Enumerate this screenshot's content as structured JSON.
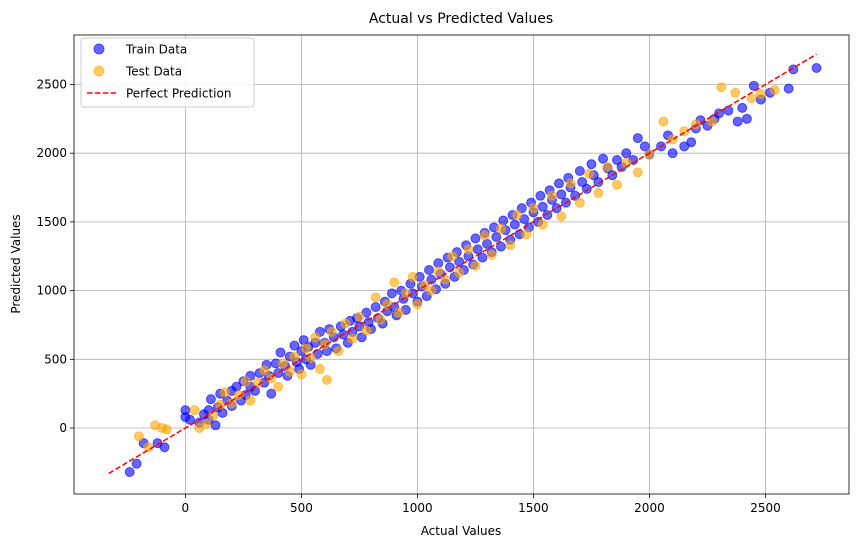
{
  "chart_data": {
    "type": "scatter",
    "title": "Actual vs Predicted Values",
    "xlabel": "Actual Values",
    "ylabel": "Predicted Values",
    "xlim": [
      -480,
      2860
    ],
    "ylim": [
      -480,
      2860
    ],
    "x_ticks": [
      0,
      500,
      1000,
      1500,
      2000,
      2500
    ],
    "y_ticks": [
      0,
      500,
      1000,
      1500,
      2000,
      2500
    ],
    "grid": true,
    "legend_position": "top-left",
    "colors": {
      "train": "#0000ff",
      "test": "#ffa500",
      "perfect": "#ff0000",
      "grid": "#b0b0b0"
    },
    "series": [
      {
        "name": "Train Data",
        "color": "#0000ff",
        "points": [
          [
            -240,
            -320
          ],
          [
            -210,
            -260
          ],
          [
            -180,
            -110
          ],
          [
            -120,
            -110
          ],
          [
            -90,
            -140
          ],
          [
            0,
            130
          ],
          [
            0,
            80
          ],
          [
            20,
            60
          ],
          [
            60,
            40
          ],
          [
            80,
            100
          ],
          [
            100,
            130
          ],
          [
            100,
            60
          ],
          [
            110,
            210
          ],
          [
            130,
            20
          ],
          [
            140,
            150
          ],
          [
            150,
            250
          ],
          [
            160,
            110
          ],
          [
            180,
            200
          ],
          [
            200,
            270
          ],
          [
            200,
            160
          ],
          [
            220,
            300
          ],
          [
            240,
            200
          ],
          [
            250,
            340
          ],
          [
            260,
            240
          ],
          [
            280,
            300
          ],
          [
            280,
            380
          ],
          [
            300,
            270
          ],
          [
            320,
            400
          ],
          [
            340,
            330
          ],
          [
            350,
            460
          ],
          [
            360,
            380
          ],
          [
            370,
            250
          ],
          [
            390,
            470
          ],
          [
            400,
            400
          ],
          [
            410,
            550
          ],
          [
            430,
            450
          ],
          [
            440,
            380
          ],
          [
            450,
            520
          ],
          [
            470,
            600
          ],
          [
            480,
            480
          ],
          [
            490,
            430
          ],
          [
            500,
            560
          ],
          [
            510,
            640
          ],
          [
            520,
            500
          ],
          [
            530,
            590
          ],
          [
            540,
            460
          ],
          [
            560,
            620
          ],
          [
            570,
            540
          ],
          [
            580,
            700
          ],
          [
            600,
            620
          ],
          [
            610,
            560
          ],
          [
            620,
            720
          ],
          [
            640,
            660
          ],
          [
            650,
            580
          ],
          [
            670,
            740
          ],
          [
            680,
            680
          ],
          [
            700,
            620
          ],
          [
            710,
            780
          ],
          [
            720,
            700
          ],
          [
            740,
            800
          ],
          [
            750,
            740
          ],
          [
            760,
            660
          ],
          [
            780,
            840
          ],
          [
            790,
            770
          ],
          [
            800,
            720
          ],
          [
            820,
            880
          ],
          [
            830,
            800
          ],
          [
            850,
            760
          ],
          [
            860,
            920
          ],
          [
            870,
            850
          ],
          [
            890,
            980
          ],
          [
            900,
            880
          ],
          [
            910,
            820
          ],
          [
            930,
            1000
          ],
          [
            940,
            940
          ],
          [
            950,
            860
          ],
          [
            970,
            1050
          ],
          [
            980,
            980
          ],
          [
            1000,
            920
          ],
          [
            1010,
            1100
          ],
          [
            1020,
            1030
          ],
          [
            1040,
            960
          ],
          [
            1050,
            1150
          ],
          [
            1060,
            1080
          ],
          [
            1080,
            1010
          ],
          [
            1090,
            1200
          ],
          [
            1100,
            1120
          ],
          [
            1120,
            1050
          ],
          [
            1130,
            1240
          ],
          [
            1140,
            1170
          ],
          [
            1160,
            1100
          ],
          [
            1170,
            1280
          ],
          [
            1180,
            1210
          ],
          [
            1200,
            1150
          ],
          [
            1210,
            1330
          ],
          [
            1220,
            1250
          ],
          [
            1240,
            1190
          ],
          [
            1250,
            1380
          ],
          [
            1260,
            1300
          ],
          [
            1280,
            1240
          ],
          [
            1290,
            1420
          ],
          [
            1300,
            1340
          ],
          [
            1320,
            1280
          ],
          [
            1330,
            1460
          ],
          [
            1340,
            1390
          ],
          [
            1360,
            1320
          ],
          [
            1370,
            1510
          ],
          [
            1380,
            1440
          ],
          [
            1400,
            1370
          ],
          [
            1410,
            1550
          ],
          [
            1420,
            1480
          ],
          [
            1440,
            1410
          ],
          [
            1450,
            1600
          ],
          [
            1460,
            1520
          ],
          [
            1480,
            1460
          ],
          [
            1490,
            1640
          ],
          [
            1500,
            1570
          ],
          [
            1520,
            1500
          ],
          [
            1530,
            1690
          ],
          [
            1540,
            1610
          ],
          [
            1560,
            1550
          ],
          [
            1570,
            1730
          ],
          [
            1580,
            1660
          ],
          [
            1600,
            1600
          ],
          [
            1610,
            1780
          ],
          [
            1620,
            1700
          ],
          [
            1640,
            1640
          ],
          [
            1650,
            1820
          ],
          [
            1660,
            1750
          ],
          [
            1680,
            1690
          ],
          [
            1700,
            1870
          ],
          [
            1710,
            1790
          ],
          [
            1730,
            1740
          ],
          [
            1750,
            1920
          ],
          [
            1760,
            1840
          ],
          [
            1780,
            1790
          ],
          [
            1800,
            1960
          ],
          [
            1820,
            1890
          ],
          [
            1840,
            1840
          ],
          [
            1860,
            1950
          ],
          [
            1880,
            1900
          ],
          [
            1900,
            2000
          ],
          [
            1930,
            1950
          ],
          [
            1950,
            2110
          ],
          [
            1980,
            2050
          ],
          [
            2000,
            1990
          ],
          [
            2050,
            2050
          ],
          [
            2080,
            2130
          ],
          [
            2100,
            2000
          ],
          [
            2150,
            2050
          ],
          [
            2180,
            2080
          ],
          [
            2200,
            2180
          ],
          [
            2220,
            2240
          ],
          [
            2250,
            2200
          ],
          [
            2280,
            2250
          ],
          [
            2300,
            2290
          ],
          [
            2340,
            2310
          ],
          [
            2380,
            2230
          ],
          [
            2400,
            2330
          ],
          [
            2420,
            2250
          ],
          [
            2450,
            2490
          ],
          [
            2480,
            2390
          ],
          [
            2520,
            2440
          ],
          [
            2600,
            2470
          ],
          [
            2620,
            2610
          ],
          [
            2720,
            2620
          ]
        ]
      },
      {
        "name": "Test Data",
        "color": "#ffa500",
        "points": [
          [
            -200,
            -60
          ],
          [
            -160,
            -140
          ],
          [
            -130,
            20
          ],
          [
            -100,
            0
          ],
          [
            -80,
            -10
          ],
          [
            40,
            130
          ],
          [
            60,
            0
          ],
          [
            90,
            30
          ],
          [
            120,
            90
          ],
          [
            150,
            170
          ],
          [
            170,
            260
          ],
          [
            200,
            180
          ],
          [
            230,
            240
          ],
          [
            260,
            340
          ],
          [
            280,
            200
          ],
          [
            310,
            330
          ],
          [
            340,
            420
          ],
          [
            370,
            360
          ],
          [
            400,
            300
          ],
          [
            420,
            470
          ],
          [
            450,
            410
          ],
          [
            470,
            520
          ],
          [
            500,
            390
          ],
          [
            520,
            580
          ],
          [
            540,
            510
          ],
          [
            560,
            660
          ],
          [
            580,
            430
          ],
          [
            600,
            610
          ],
          [
            610,
            350
          ],
          [
            630,
            700
          ],
          [
            660,
            560
          ],
          [
            690,
            760
          ],
          [
            720,
            650
          ],
          [
            750,
            810
          ],
          [
            780,
            710
          ],
          [
            820,
            950
          ],
          [
            840,
            790
          ],
          [
            870,
            900
          ],
          [
            900,
            1060
          ],
          [
            920,
            840
          ],
          [
            950,
            980
          ],
          [
            980,
            1100
          ],
          [
            1000,
            900
          ],
          [
            1030,
            1040
          ],
          [
            1060,
            1000
          ],
          [
            1090,
            1140
          ],
          [
            1120,
            1080
          ],
          [
            1150,
            1250
          ],
          [
            1180,
            1130
          ],
          [
            1220,
            1300
          ],
          [
            1250,
            1180
          ],
          [
            1290,
            1400
          ],
          [
            1320,
            1260
          ],
          [
            1360,
            1450
          ],
          [
            1400,
            1330
          ],
          [
            1430,
            1550
          ],
          [
            1470,
            1410
          ],
          [
            1500,
            1600
          ],
          [
            1540,
            1480
          ],
          [
            1580,
            1690
          ],
          [
            1620,
            1540
          ],
          [
            1660,
            1780
          ],
          [
            1700,
            1640
          ],
          [
            1740,
            1850
          ],
          [
            1780,
            1710
          ],
          [
            1820,
            1900
          ],
          [
            1860,
            1770
          ],
          [
            1900,
            1930
          ],
          [
            1950,
            1860
          ],
          [
            2000,
            1990
          ],
          [
            2060,
            2230
          ],
          [
            2100,
            2100
          ],
          [
            2150,
            2160
          ],
          [
            2200,
            2210
          ],
          [
            2270,
            2230
          ],
          [
            2310,
            2480
          ],
          [
            2370,
            2440
          ],
          [
            2440,
            2400
          ],
          [
            2480,
            2430
          ],
          [
            2540,
            2460
          ]
        ]
      }
    ],
    "reference_line": {
      "name": "Perfect Prediction",
      "style": "dashed",
      "x": [
        -330,
        2720
      ],
      "y": [
        -330,
        2720
      ]
    }
  }
}
